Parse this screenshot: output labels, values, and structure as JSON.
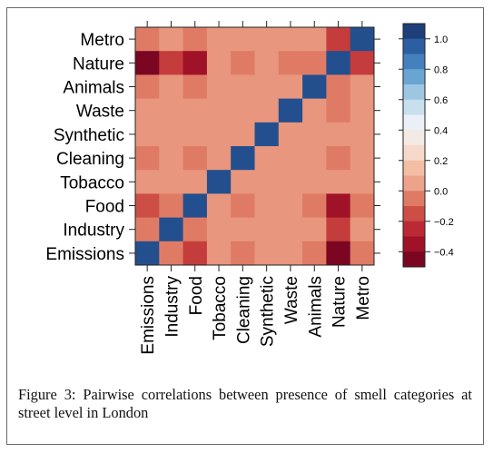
{
  "chart_data": {
    "type": "heatmap",
    "rows": [
      "Metro",
      "Nature",
      "Animals",
      "Waste",
      "Synthetic",
      "Cleaning",
      "Tobacco",
      "Food",
      "Industry",
      "Emissions"
    ],
    "columns": [
      "Emissions",
      "Industry",
      "Food",
      "Tobacco",
      "Cleaning",
      "Synthetic",
      "Waste",
      "Animals",
      "Nature",
      "Metro"
    ],
    "values": [
      [
        -0.05,
        0.0,
        -0.05,
        0.0,
        0.0,
        0.0,
        0.0,
        0.0,
        -0.2,
        1.0
      ],
      [
        -0.45,
        -0.2,
        -0.35,
        0.0,
        -0.05,
        0.0,
        -0.05,
        -0.05,
        1.0,
        -0.2
      ],
      [
        -0.05,
        0.0,
        -0.05,
        0.0,
        0.0,
        0.0,
        0.0,
        1.0,
        -0.05,
        0.0
      ],
      [
        0.0,
        0.0,
        0.0,
        0.0,
        0.0,
        0.0,
        1.0,
        0.0,
        -0.05,
        0.0
      ],
      [
        0.0,
        0.0,
        0.0,
        0.0,
        0.0,
        1.0,
        0.0,
        0.0,
        0.0,
        0.0
      ],
      [
        -0.05,
        0.0,
        -0.05,
        0.0,
        1.0,
        0.0,
        0.0,
        0.0,
        -0.05,
        0.0
      ],
      [
        0.0,
        0.0,
        0.0,
        1.0,
        0.0,
        0.0,
        0.0,
        0.0,
        0.0,
        0.0
      ],
      [
        -0.15,
        -0.05,
        1.0,
        0.0,
        -0.05,
        0.0,
        0.0,
        -0.05,
        -0.35,
        -0.05
      ],
      [
        -0.05,
        1.0,
        -0.05,
        0.0,
        0.0,
        0.0,
        0.0,
        0.0,
        -0.2,
        0.0
      ],
      [
        1.0,
        -0.05,
        -0.2,
        0.0,
        -0.05,
        0.0,
        0.0,
        -0.05,
        -0.45,
        -0.05
      ]
    ],
    "colorbar": {
      "range": [
        -0.5,
        1.1
      ],
      "ticks": [
        1.0,
        0.8,
        0.6,
        0.4,
        0.2,
        0.0,
        -0.2,
        -0.4
      ],
      "tick_labels": [
        "1.0",
        "0.8",
        "0.6",
        "0.4",
        "0.2",
        "0.0",
        "−0.2",
        "−0.4"
      ]
    }
  },
  "caption": "Figure 3: Pairwise correlations between presence of smell categories at street level in London"
}
